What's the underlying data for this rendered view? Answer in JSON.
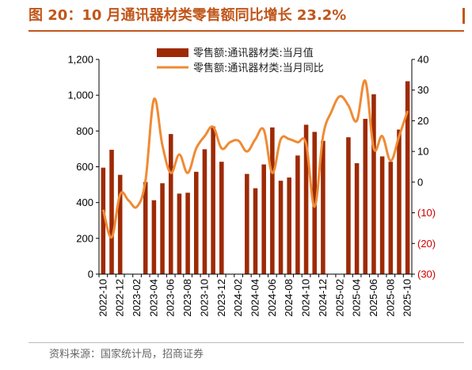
{
  "title": "图 20：10 月通讯器材类零售额同比增长 23.2%",
  "source": "资料来源：国家统计局，招商证券",
  "colors": {
    "title": "#c0561a",
    "bar": "#9e2a05",
    "line": "#ef8b34",
    "neg_tick": "#cc0000"
  },
  "chart_data": {
    "type": "bar",
    "categories": [
      "2022-10",
      "2022-11",
      "2022-12",
      "2023-01",
      "2023-02",
      "2023-03",
      "2023-04",
      "2023-05",
      "2023-06",
      "2023-07",
      "2023-08",
      "2023-09",
      "2023-10",
      "2023-11",
      "2023-12",
      "2024-01",
      "2024-02",
      "2024-03",
      "2024-04",
      "2024-05",
      "2024-06",
      "2024-07",
      "2024-08",
      "2024-09",
      "2024-10",
      "2024-11",
      "2024-12",
      "2025-01",
      "2025-02",
      "2025-03",
      "2025-04",
      "2025-05",
      "2025-06",
      "2025-07",
      "2025-08",
      "2025-09",
      "2025-10"
    ],
    "tick_labels": [
      "2022-10",
      "2022-12",
      "2023-02",
      "2023-04",
      "2023-06",
      "2023-08",
      "2023-10",
      "2023-12",
      "2024-02",
      "2024-04",
      "2024-06",
      "2024-08",
      "2024-10",
      "2024-12",
      "2025-02",
      "2025-04",
      "2025-06",
      "2025-08",
      "2025-10"
    ],
    "series": [
      {
        "name": "零售额:通讯器材类:当月值",
        "type": "bar",
        "axis": "left",
        "values": [
          595,
          695,
          555,
          null,
          null,
          515,
          413,
          508,
          783,
          450,
          455,
          572,
          698,
          825,
          628,
          null,
          null,
          560,
          480,
          613,
          820,
          522,
          540,
          663,
          835,
          795,
          745,
          null,
          null,
          765,
          620,
          868,
          1005,
          658,
          628,
          808,
          1078
        ]
      },
      {
        "name": "零售额:通讯器材类:当月同比",
        "type": "line",
        "axis": "right",
        "values": [
          -9,
          -18,
          -4,
          -6,
          -8,
          0.5,
          27,
          12,
          3,
          9,
          3,
          11,
          15,
          18,
          11,
          13,
          13.5,
          10,
          14,
          17,
          3,
          14,
          14,
          13,
          12.5,
          -8,
          15,
          23,
          28,
          25,
          20,
          33,
          11,
          15,
          7,
          15,
          23.2
        ]
      }
    ],
    "y_left": {
      "min": 0,
      "max": 1200,
      "ticks": [
        0,
        200,
        400,
        600,
        800,
        1000,
        1200
      ],
      "tick_labels": [
        "0",
        "200",
        "400",
        "600",
        "800",
        "1,000",
        "1,200"
      ]
    },
    "y_right": {
      "min": -30,
      "max": 40,
      "ticks": [
        -30,
        -20,
        -10,
        0,
        10,
        20,
        30,
        40
      ],
      "tick_labels": [
        "(30)",
        "(20)",
        "(10)",
        "0",
        "10",
        "20",
        "30",
        "40"
      ]
    },
    "legend_position": "top-center",
    "grid": false
  }
}
